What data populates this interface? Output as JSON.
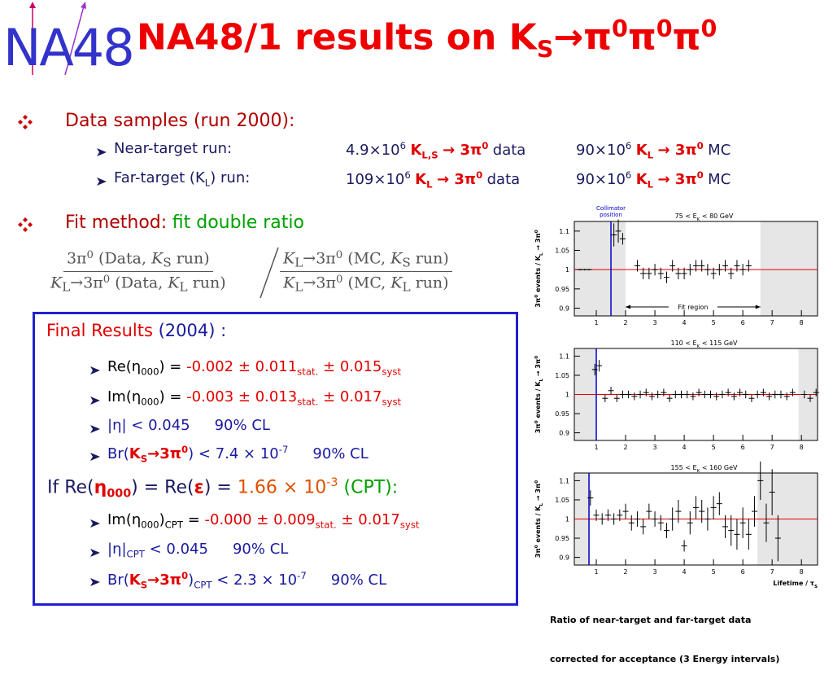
{
  "logo": "NA48",
  "title": [
    "NA48/1 results on K",
    "S",
    "→π",
    "0",
    "π",
    "0",
    "π",
    "0"
  ],
  "data_samples": {
    "heading": "Data samples (run 2000):",
    "rows": [
      {
        "label": [
          "Near-target run:"
        ],
        "data": [
          "4.9×10",
          "6",
          "K",
          "L,S",
          "→ 3π",
          "0",
          "data"
        ],
        "mc": [
          "90×10",
          "6",
          "K",
          "L",
          "→ 3π",
          "0",
          "MC"
        ]
      },
      {
        "label": [
          "Far-target (K",
          "L",
          ") run:"
        ],
        "data": [
          "109×10",
          "6",
          "K",
          "L",
          "→ 3π",
          "0",
          "data"
        ],
        "mc": [
          "90×10",
          "6",
          "K",
          "L",
          "→ 3π",
          "0",
          "MC"
        ]
      }
    ]
  },
  "fit_method": [
    "Fit method:",
    "fit double ratio"
  ],
  "formula": {
    "left_num": [
      "3π",
      "0",
      " (Data, ",
      "K",
      "S",
      " run)"
    ],
    "left_den": [
      "K",
      "L",
      "→3π",
      "0",
      " (Data, ",
      "K",
      "L",
      " run)"
    ],
    "right_num": [
      "K",
      "L",
      "→3π",
      "0",
      " (MC, ",
      "K",
      "S",
      " run)"
    ],
    "right_den": [
      "K",
      "L",
      "→3π",
      "0",
      " (MC, ",
      "K",
      "L",
      " run)"
    ]
  },
  "final": {
    "heading": [
      "Final Results",
      " (2004) :"
    ],
    "items": [
      [
        "Re(η",
        "000",
        ") = ",
        "-0.002 ± 0.011",
        "stat.",
        " ± 0.015",
        "syst"
      ],
      [
        "Im(η",
        "000",
        ") = ",
        "-0.003 ± 0.013",
        "stat.",
        " ± 0.017",
        "syst"
      ],
      [
        "|η| < 0.045",
        "90% CL"
      ],
      [
        "Br(",
        "K",
        "S",
        "→3π",
        "0",
        ") < 7.4 × 10",
        "-7",
        "90% CL"
      ]
    ],
    "cpt_heading": [
      "If Re(",
      "η",
      "000",
      ") = Re(",
      "ε",
      ") = ",
      "1.66 × 10",
      "-3",
      " (CPT):"
    ],
    "cpt_items": [
      [
        "Im(η",
        "000",
        ")",
        "CPT",
        " = ",
        "-0.000 ± 0.009",
        "stat.",
        " ± 0.017",
        "syst"
      ],
      [
        "|η|",
        "CPT",
        " < 0.045",
        "90% CL"
      ],
      [
        "Br(",
        "K",
        "S",
        "→3π",
        "0",
        ")",
        "CPT",
        " < 2.3 × 10",
        "-7",
        "90% CL"
      ]
    ]
  },
  "caption": [
    "Ratio of near-target and far-target data",
    "corrected for acceptance (3 Energy intervals)"
  ],
  "chart_data": [
    {
      "type": "scatter",
      "title": [
        "75 < E",
        "K",
        " < 80 GeV"
      ],
      "ylabel": [
        "3π",
        "0",
        " events / K",
        "L",
        " → 3π",
        "0"
      ],
      "xlim": [
        0.25,
        8.55
      ],
      "ylim": [
        0.88,
        1.125
      ],
      "xticks": [
        1,
        2,
        3,
        4,
        5,
        6,
        7,
        8
      ],
      "yticks": [
        0.9,
        0.95,
        1,
        1.05,
        1.1
      ],
      "excluded": [
        [
          0.25,
          2.0
        ],
        [
          6.6,
          8.55
        ]
      ],
      "collimator": 1.5,
      "reference": 1,
      "collimator_label": [
        "Collimator",
        "position"
      ],
      "fit_label": "Fit region",
      "x": [
        0.45,
        0.6,
        0.75,
        1.6,
        1.75,
        1.9,
        2.4,
        2.6,
        2.8,
        3.0,
        3.2,
        3.4,
        3.6,
        3.8,
        4.0,
        4.2,
        4.4,
        4.6,
        4.8,
        5.0,
        5.2,
        5.4,
        5.6,
        5.8,
        6.0,
        6.2
      ],
      "values": [
        1,
        1,
        1,
        1.09,
        1.1,
        1.08,
        1.01,
        0.99,
        0.99,
        1.0,
        0.99,
        0.98,
        1.01,
        0.99,
        0.99,
        1.0,
        1.01,
        1.01,
        1.0,
        0.99,
        1.0,
        1.01,
        0.99,
        1.01,
        1.0,
        1.01
      ],
      "errors": [
        0.002,
        0.002,
        0.002,
        0.03,
        0.03,
        0.015,
        0.015,
        0.015,
        0.015,
        0.015,
        0.015,
        0.015,
        0.015,
        0.015,
        0.015,
        0.015,
        0.015,
        0.015,
        0.015,
        0.015,
        0.015,
        0.015,
        0.015,
        0.015,
        0.015,
        0.015
      ]
    },
    {
      "type": "scatter",
      "title": [
        "110 < E",
        "K",
        " < 115 GeV"
      ],
      "ylabel": [
        "3π",
        "0",
        " events / K",
        "L",
        " → 3π",
        "0"
      ],
      "xlim": [
        0.25,
        8.55
      ],
      "ylim": [
        0.88,
        1.12
      ],
      "xticks": [
        1,
        2,
        3,
        4,
        5,
        6,
        7,
        8
      ],
      "yticks": [
        0.9,
        0.95,
        1,
        1.05,
        1.1
      ],
      "excluded": [
        [
          0.25,
          1.0
        ],
        [
          7.9,
          8.55
        ]
      ],
      "collimator": 1.0,
      "reference": 1,
      "x": [
        0.95,
        1.1,
        1.3,
        1.5,
        1.7,
        1.9,
        2.1,
        2.3,
        2.5,
        2.7,
        2.9,
        3.1,
        3.3,
        3.5,
        3.7,
        3.9,
        4.1,
        4.3,
        4.5,
        4.7,
        4.9,
        5.1,
        5.3,
        5.5,
        5.7,
        5.9,
        6.1,
        6.3,
        6.5,
        6.7,
        6.9,
        7.1,
        7.3,
        7.5,
        7.7,
        8.1,
        8.3,
        8.5
      ],
      "values": [
        1.065,
        1.075,
        0.99,
        1.01,
        0.99,
        1.0,
        1.0,
        0.995,
        1.0,
        1.005,
        0.995,
        1.0,
        1.005,
        0.99,
        1.0,
        1.0,
        1.0,
        0.995,
        1.005,
        1.0,
        1.0,
        0.995,
        1.0,
        1.005,
        0.995,
        1.005,
        1.0,
        0.99,
        1.0,
        1.005,
        0.995,
        1.0,
        1.0,
        0.995,
        1.005,
        1.0,
        0.99,
        1.005
      ],
      "errors": [
        0.015,
        0.015,
        0.01,
        0.01,
        0.01,
        0.01,
        0.01,
        0.01,
        0.01,
        0.01,
        0.01,
        0.01,
        0.01,
        0.01,
        0.01,
        0.01,
        0.01,
        0.01,
        0.01,
        0.01,
        0.01,
        0.01,
        0.01,
        0.01,
        0.01,
        0.01,
        0.01,
        0.01,
        0.01,
        0.01,
        0.01,
        0.01,
        0.01,
        0.01,
        0.01,
        0.01,
        0.01,
        0.01
      ]
    },
    {
      "type": "scatter",
      "title": [
        "155 < E",
        "K",
        " < 160 GeV"
      ],
      "ylabel": [
        "3π",
        "0",
        " events / K",
        "L",
        " → 3π",
        "0"
      ],
      "xlabel": [
        "Lifetime / τ",
        "S"
      ],
      "xlim": [
        0.25,
        8.55
      ],
      "ylim": [
        0.88,
        1.12
      ],
      "xticks": [
        1,
        2,
        3,
        4,
        5,
        6,
        7,
        8
      ],
      "yticks": [
        0.9,
        0.95,
        1,
        1.05,
        1.1
      ],
      "excluded": [
        [
          0.25,
          0.8
        ],
        [
          6.5,
          8.55
        ]
      ],
      "collimator": 0.75,
      "reference": 1,
      "x": [
        0.8,
        1.0,
        1.2,
        1.4,
        1.6,
        1.8,
        2.0,
        2.2,
        2.4,
        2.6,
        2.8,
        3.0,
        3.2,
        3.4,
        3.6,
        3.8,
        4.0,
        4.2,
        4.4,
        4.6,
        4.8,
        5.0,
        5.2,
        5.4,
        5.6,
        5.8,
        6.0,
        6.2,
        6.4,
        6.6,
        6.8,
        7.0,
        7.2
      ],
      "values": [
        1.055,
        1.01,
        1.0,
        1.01,
        1.0,
        1.01,
        1.02,
        0.99,
        1.0,
        0.98,
        1.02,
        1.0,
        0.99,
        0.97,
        1.0,
        1.02,
        0.93,
        0.99,
        1.03,
        1.02,
        1.0,
        1.03,
        1.04,
        0.98,
        0.97,
        0.96,
        0.99,
        0.96,
        1.02,
        1.1,
        0.99,
        1.07,
        0.95
      ],
      "errors": [
        0.02,
        0.015,
        0.015,
        0.015,
        0.015,
        0.015,
        0.02,
        0.02,
        0.02,
        0.02,
        0.02,
        0.02,
        0.02,
        0.02,
        0.03,
        0.03,
        0.015,
        0.03,
        0.03,
        0.03,
        0.03,
        0.03,
        0.03,
        0.03,
        0.04,
        0.04,
        0.04,
        0.04,
        0.04,
        0.05,
        0.05,
        0.06,
        0.06
      ]
    }
  ]
}
